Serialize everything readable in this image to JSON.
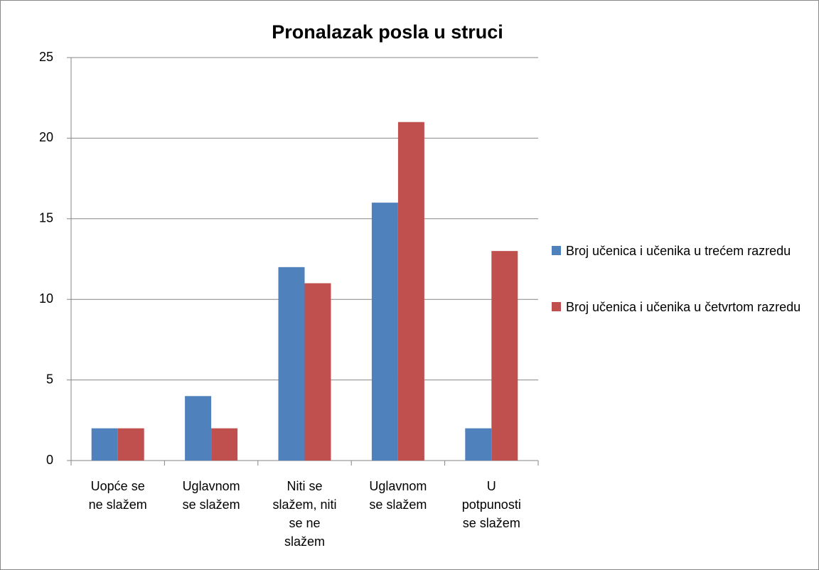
{
  "chart_data": {
    "type": "bar",
    "title": "Pronalazak posla u struci",
    "categories": [
      "Uopće se ne slažem",
      "Uglavnom se slažem",
      "Niti se slažem, niti se ne slažem",
      "Uglavnom se slažem",
      "U potpunosti se slažem"
    ],
    "series": [
      {
        "name": "Broj učenica i učenika u trećem razredu",
        "color": "#4f81bd",
        "values": [
          2,
          4,
          12,
          16,
          2
        ]
      },
      {
        "name": "Broj učenica i učenika u četvrtom razredu",
        "color": "#c0504d",
        "values": [
          2,
          2,
          11,
          21,
          13
        ]
      }
    ],
    "ylim": [
      0,
      25
    ],
    "yticks": [
      0,
      5,
      10,
      15,
      20,
      25
    ],
    "grid": true,
    "legend": "right"
  }
}
